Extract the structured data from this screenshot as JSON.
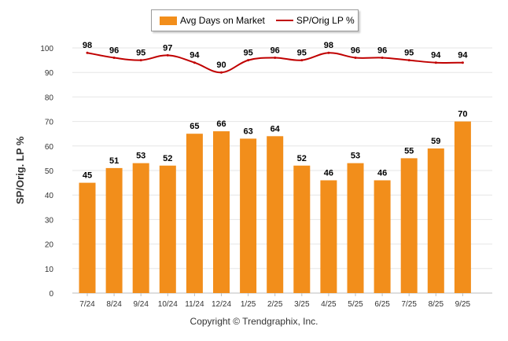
{
  "chart_data": {
    "type": "bar",
    "categories": [
      "7/24",
      "8/24",
      "9/24",
      "10/24",
      "11/24",
      "12/24",
      "1/25",
      "2/25",
      "3/25",
      "4/25",
      "5/25",
      "6/25",
      "7/25",
      "8/25",
      "9/25"
    ],
    "series": [
      {
        "name": "Avg Days on Market",
        "type": "bar",
        "color": "#f28e1b",
        "values": [
          45,
          51,
          53,
          52,
          65,
          66,
          63,
          64,
          52,
          46,
          53,
          46,
          55,
          59,
          70
        ]
      },
      {
        "name": "SP/Orig LP %",
        "type": "line",
        "color": "#c00000",
        "values": [
          98,
          96,
          95,
          97,
          94,
          90,
          95,
          96,
          95,
          98,
          96,
          96,
          95,
          94,
          94
        ]
      }
    ],
    "ylabel": "SP/Orig. LP %",
    "ylim": [
      0,
      100
    ],
    "yticks": [
      0,
      10,
      20,
      30,
      40,
      50,
      60,
      70,
      80,
      90,
      100
    ],
    "grid": true,
    "legend_position": "top-center"
  },
  "legend": {
    "bar_label": "Avg Days on Market",
    "line_label": "SP/Orig LP %"
  },
  "footer": {
    "copyright": "Copyright © Trendgraphix, Inc."
  }
}
